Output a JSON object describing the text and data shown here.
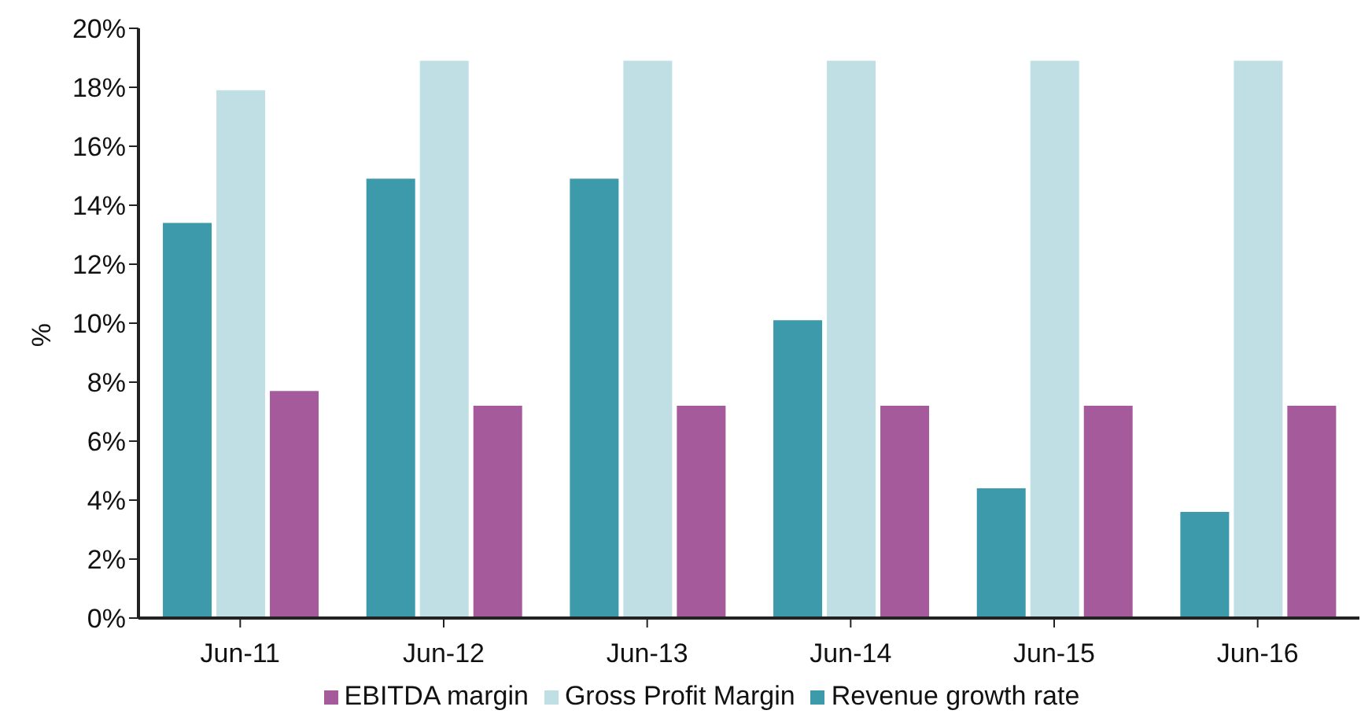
{
  "chart_data": {
    "type": "bar",
    "ylabel": "%",
    "categories": [
      "Jun-11",
      "Jun-12",
      "Jun-13",
      "Jun-14",
      "Jun-15",
      "Jun-16"
    ],
    "series": [
      {
        "name": "Revenue growth rate",
        "color": "#3d9aaa",
        "values": [
          13.4,
          14.9,
          14.9,
          10.1,
          4.4,
          3.6
        ]
      },
      {
        "name": "Gross Profit Margin",
        "color": "#c0dfe4",
        "values": [
          17.9,
          18.9,
          18.9,
          18.9,
          18.9,
          18.9
        ]
      },
      {
        "name": "EBITDA margin",
        "color": "#a55b9b",
        "values": [
          7.7,
          7.2,
          7.2,
          7.2,
          7.2,
          7.2
        ]
      }
    ],
    "ylim": [
      0,
      20
    ],
    "yticks": [
      {
        "value": 0,
        "label": "0%"
      },
      {
        "value": 2,
        "label": "2%"
      },
      {
        "value": 4,
        "label": "4%"
      },
      {
        "value": 6,
        "label": "6%"
      },
      {
        "value": 8,
        "label": "8%"
      },
      {
        "value": 10,
        "label": "10%"
      },
      {
        "value": 12,
        "label": "12%"
      },
      {
        "value": 14,
        "label": "14%"
      },
      {
        "value": 16,
        "label": "16%"
      },
      {
        "value": 18,
        "label": "18%"
      },
      {
        "value": 20,
        "label": "20%"
      }
    ],
    "grid": false,
    "legend": "bottom"
  }
}
